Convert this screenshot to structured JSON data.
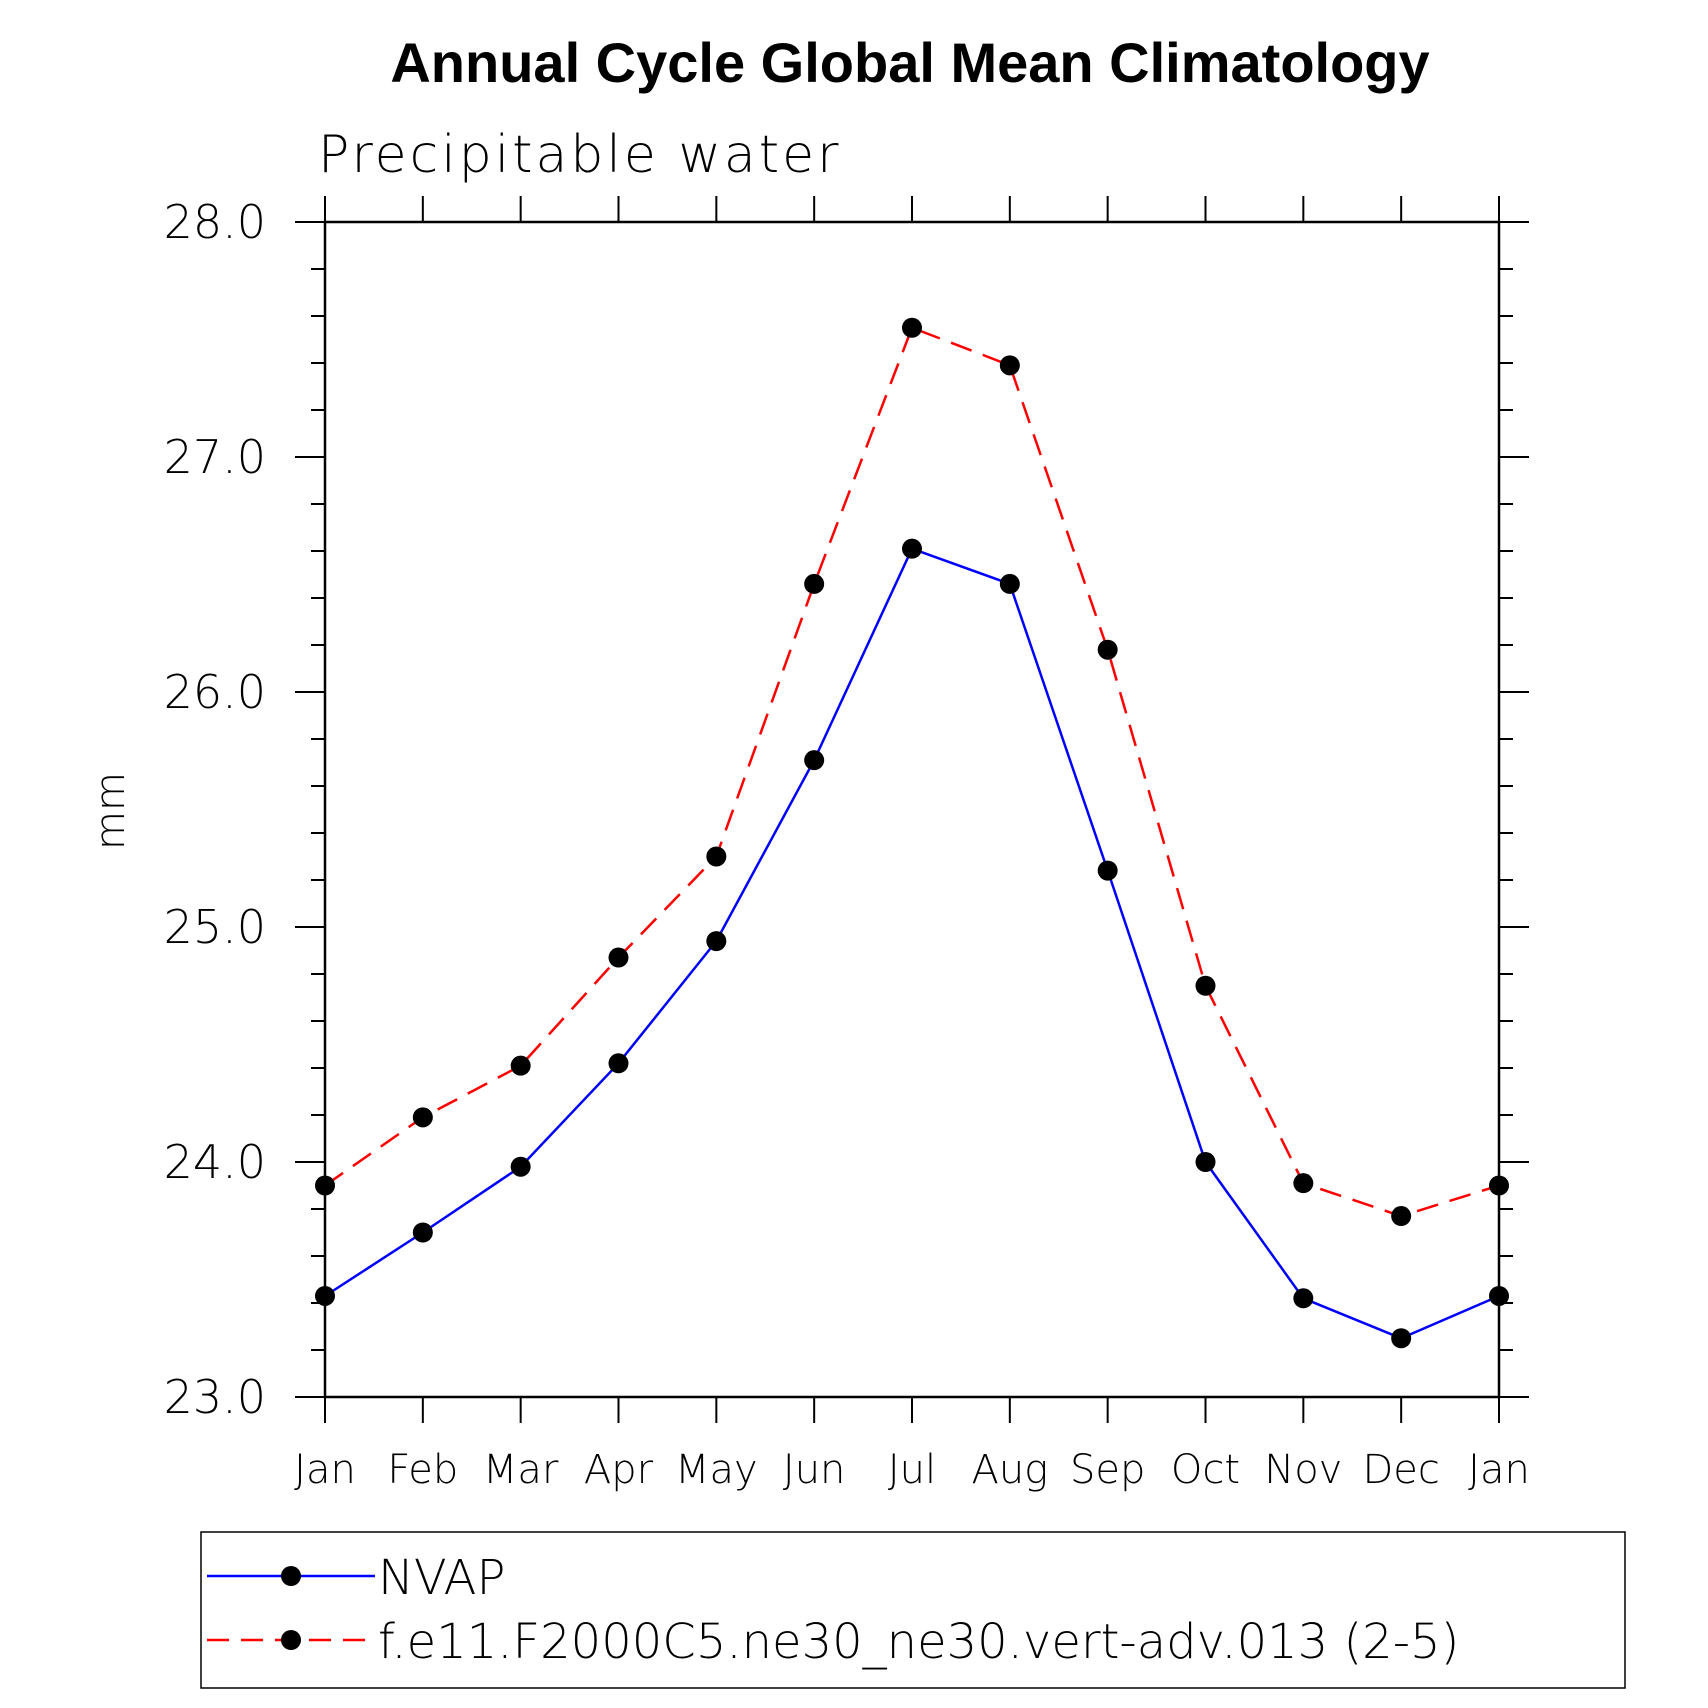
{
  "chart_data": {
    "type": "line",
    "title": "Annual Cycle Global Mean Climatology",
    "subtitle": "Precipitable water",
    "ylabel": "mm",
    "xlabel": "",
    "categories": [
      "Jan",
      "Feb",
      "Mar",
      "Apr",
      "May",
      "Jun",
      "Jul",
      "Aug",
      "Sep",
      "Oct",
      "Nov",
      "Dec",
      "Jan"
    ],
    "ylim": [
      23.0,
      28.0
    ],
    "yticks": [
      "23.0",
      "24.0",
      "25.0",
      "26.0",
      "27.0",
      "28.0"
    ],
    "grid": false,
    "legend_position": "bottom",
    "series": [
      {
        "name": "NVAP",
        "color": "#0000ff",
        "dash": "solid",
        "marker": "filled-circle",
        "values": [
          23.43,
          23.7,
          23.98,
          24.42,
          24.94,
          25.71,
          26.61,
          26.46,
          25.24,
          24.0,
          23.42,
          23.25,
          23.43
        ]
      },
      {
        "name": "f.e11.F2000C5.ne30_ne30.vert-adv.013 (2-5)",
        "color": "#ff0000",
        "dash": "dashed",
        "marker": "filled-circle",
        "values": [
          23.9,
          24.19,
          24.41,
          24.87,
          25.3,
          26.46,
          27.55,
          27.39,
          26.18,
          24.75,
          23.91,
          23.77,
          23.9
        ]
      }
    ]
  }
}
